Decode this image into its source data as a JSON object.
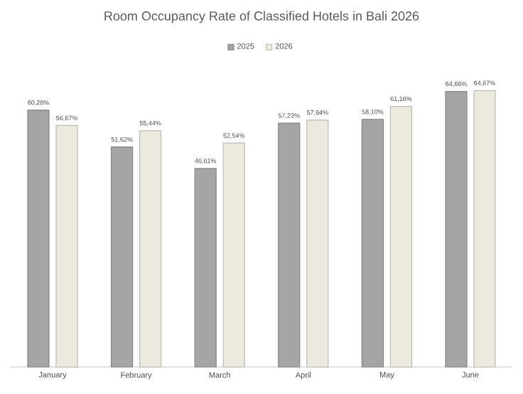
{
  "chart_data": {
    "type": "bar",
    "title": "Room Occupancy Rate of Classified Hotels in Bali 2026",
    "categories": [
      "January",
      "February",
      "March",
      "April",
      "May",
      "June"
    ],
    "legend": "top",
    "series": [
      {
        "name": "2025",
        "color": "#a5a5a5",
        "values": [
          60.28,
          51.62,
          46.61,
          57.23,
          58.1,
          64.66
        ],
        "value_labels": [
          "60,28%",
          "51,62%",
          "46,61%",
          "57,23%",
          "58,10%",
          "64,66%"
        ]
      },
      {
        "name": "2026",
        "color": "#ece9df",
        "values": [
          56.67,
          55.44,
          52.54,
          57.94,
          61.16,
          64.87
        ],
        "value_labels": [
          "56,67%",
          "55,44%",
          "52,54%",
          "57,94%",
          "61,16%",
          "64,87%"
        ]
      }
    ]
  }
}
